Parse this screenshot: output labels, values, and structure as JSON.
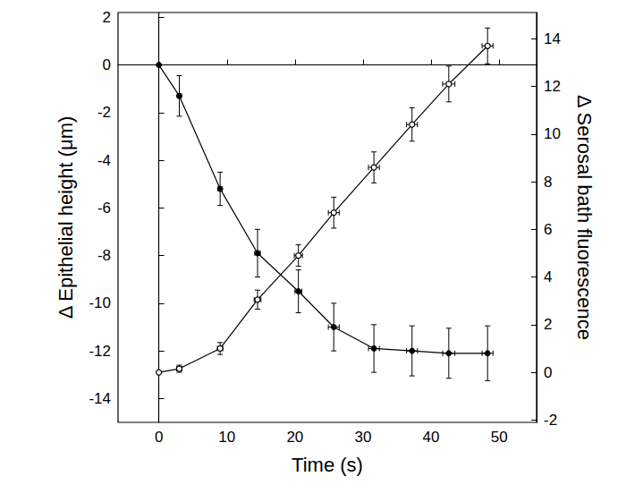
{
  "chart_data": {
    "type": "line",
    "x_label": "Time (s)",
    "y_label": "Δ Epithelial height (μm)",
    "y2_label": "Δ Serosal bath fluorescence",
    "xlim": [
      -6,
      55.5
    ],
    "xticks": [
      0,
      10,
      20,
      30,
      40,
      50
    ],
    "ylim": [
      -15,
      2.2
    ],
    "yticks": [
      -14,
      -12,
      -10,
      -8,
      -6,
      -4,
      -2,
      0,
      2
    ],
    "y2lim": [
      -2.1,
      15.1
    ],
    "y2ticks": [
      -2,
      0,
      2,
      4,
      6,
      8,
      10,
      12,
      14
    ],
    "grid": false,
    "x": [
      0,
      3,
      9,
      14.5,
      20.5,
      25.7,
      31.6,
      37.2,
      42.6,
      48.3
    ],
    "series": [
      {
        "color": "#000000",
        "marker": "filled circle",
        "line_style": "solid",
        "values": [
          0,
          -1.3,
          -5.2,
          -7.9,
          -9.5,
          -11.0,
          -11.9,
          -12.0,
          -12.1,
          -12.1
        ],
        "y_errors": [
          0,
          0.85,
          0.7,
          1.0,
          0.9,
          1.0,
          1.0,
          1.05,
          1.05,
          1.15
        ],
        "x_errors": [
          0,
          0.3,
          0.3,
          0.4,
          0.5,
          0.8,
          0.8,
          0.8,
          0.9,
          0.8
        ]
      },
      {
        "color": "#000000",
        "marker": "open circle",
        "line_style": "solid",
        "axis": "y2",
        "values": [
          0,
          0.15,
          1.0,
          3.05,
          4.9,
          6.7,
          8.6,
          10.4,
          12.1,
          13.7
        ],
        "y_errors": [
          0,
          0.15,
          0.25,
          0.4,
          0.45,
          0.65,
          0.65,
          0.7,
          0.75,
          0.75
        ],
        "x_errors": [
          0,
          0.4,
          0.4,
          0.5,
          0.6,
          0.8,
          0.8,
          0.8,
          0.9,
          0.8
        ]
      }
    ]
  }
}
